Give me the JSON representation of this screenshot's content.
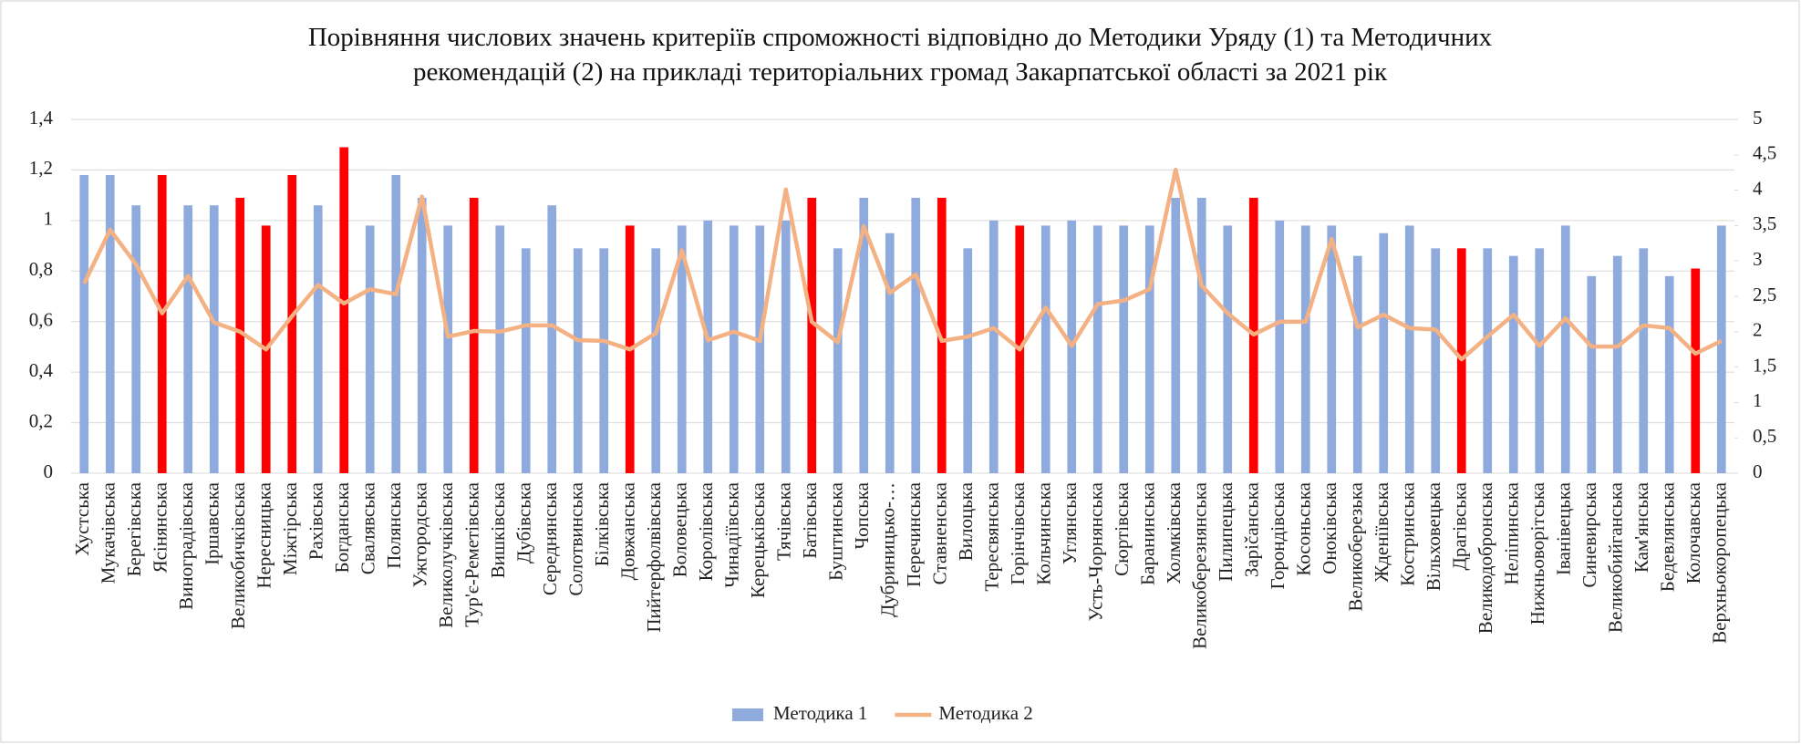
{
  "chart_data": {
    "type": "bar",
    "title": "Порівняння числових значень критеріїв спроможності відповідно до Методики Уряду (1) та Методичних рекомендацій (2) на прикладі територіальних громад Закарпатської області за 2021 рік",
    "categories": [
      "Хустська",
      "Мукачівська",
      "Берегівська",
      "Ясінянська",
      "Виноградівська",
      "Іршавська",
      "Великобичківська",
      "Нересницька",
      "Міжгірська",
      "Рахівська",
      "Богданська",
      "Свалявська",
      "Полянська",
      "Ужгородська",
      "Великолучківська",
      "Тур'є-Реметівська",
      "Вишківська",
      "Дубівська",
      "Середнянська",
      "Солотвинська",
      "Білківська",
      "Довжанська",
      "Пийтерфолвівська",
      "Воловецька",
      "Королівська",
      "Чинадіївська",
      "Керецьківська",
      "Тячівська",
      "Батівська",
      "Буштинська",
      "Чопська",
      "Дубриницько-…",
      "Перечинська",
      "Ставненська",
      "Вилоцька",
      "Тересвянська",
      "Горінчівська",
      "Кольчинська",
      "Углянська",
      "Усть-Чорнянська",
      "Сюртівська",
      "Баранинська",
      "Холмківська",
      "Великоберезнянська",
      "Пилипецька",
      "Заріčанська",
      "Горондівська",
      "Косоньська",
      "Оноківська",
      "Великоберезька",
      "Жденіївська",
      "Костринська",
      "Вільховецька",
      "Драгівська",
      "Великодобронська",
      "Неліпинська",
      "Нижньоворітська",
      "Іванівецька",
      "Синевирська",
      "Великобийганська",
      "Кам'янська",
      "Бедевлянська",
      "Колочавська",
      "Верхньокоропецька"
    ],
    "series": [
      {
        "name": "Методика 1",
        "type": "bar",
        "color": "#8faadc",
        "colors": [
          "#8faadc",
          "#8faadc",
          "#8faadc",
          "#ff0000",
          "#8faadc",
          "#8faadc",
          "#ff0000",
          "#ff0000",
          "#ff0000",
          "#8faadc",
          "#ff0000",
          "#8faadc",
          "#8faadc",
          "#8faadc",
          "#8faadc",
          "#ff0000",
          "#8faadc",
          "#8faadc",
          "#8faadc",
          "#8faadc",
          "#8faadc",
          "#ff0000",
          "#8faadc",
          "#8faadc",
          "#8faadc",
          "#8faadc",
          "#8faadc",
          "#8faadc",
          "#ff0000",
          "#8faadc",
          "#8faadc",
          "#8faadc",
          "#8faadc",
          "#ff0000",
          "#8faadc",
          "#8faadc",
          "#ff0000",
          "#8faadc",
          "#8faadc",
          "#8faadc",
          "#8faadc",
          "#8faadc",
          "#8faadc",
          "#8faadc",
          "#8faadc",
          "#ff0000",
          "#8faadc",
          "#8faadc",
          "#8faadc",
          "#8faadc",
          "#8faadc",
          "#8faadc",
          "#8faadc",
          "#ff0000",
          "#8faadc",
          "#8faadc",
          "#8faadc",
          "#8faadc",
          "#8faadc",
          "#8faadc",
          "#8faadc",
          "#8faadc",
          "#ff0000",
          "#8faadc"
        ],
        "values": [
          1.18,
          1.18,
          1.06,
          1.18,
          1.06,
          1.06,
          1.09,
          0.98,
          1.18,
          1.06,
          1.29,
          0.98,
          1.18,
          1.09,
          0.98,
          1.09,
          0.98,
          0.89,
          1.06,
          0.89,
          0.89,
          0.98,
          0.89,
          0.98,
          1.0,
          0.98,
          0.98,
          1.0,
          1.09,
          0.89,
          1.09,
          0.95,
          1.09,
          1.09,
          0.89,
          1.0,
          0.98,
          0.98,
          1.0,
          0.98,
          0.98,
          0.98,
          1.09,
          1.09,
          0.98,
          1.09,
          1.0,
          0.98,
          0.98,
          0.86,
          0.95,
          0.98,
          0.89,
          0.89,
          0.89,
          0.86,
          0.89,
          0.98,
          0.78,
          0.86,
          0.89,
          0.78,
          0.81,
          0.98
        ]
      },
      {
        "name": "Методика 2",
        "type": "line",
        "axis": "y2",
        "color": "#f4b183",
        "values": [
          2.68,
          3.44,
          2.95,
          2.26,
          2.79,
          2.13,
          2.0,
          1.75,
          2.22,
          2.66,
          2.4,
          2.6,
          2.53,
          3.91,
          1.93,
          2.01,
          2.0,
          2.09,
          2.09,
          1.88,
          1.87,
          1.75,
          1.98,
          3.15,
          1.88,
          2.0,
          1.87,
          4.01,
          2.14,
          1.85,
          3.49,
          2.55,
          2.81,
          1.87,
          1.93,
          2.05,
          1.75,
          2.34,
          1.8,
          2.39,
          2.44,
          2.6,
          4.29,
          2.65,
          2.26,
          1.96,
          2.14,
          2.14,
          3.31,
          2.06,
          2.24,
          2.05,
          2.03,
          1.61,
          1.93,
          2.24,
          1.8,
          2.19,
          1.79,
          1.79,
          2.09,
          2.05,
          1.69,
          1.87
        ]
      }
    ],
    "ylim": [
      0,
      1.4
    ],
    "yticks": [
      0,
      {
        "value": 0.2,
        "label": "0,2"
      },
      {
        "value": 0.4,
        "label": "0,4"
      },
      {
        "value": 0.6,
        "label": "0,6"
      },
      {
        "value": 0.8,
        "label": "0,8"
      },
      1,
      {
        "value": 1.2,
        "label": "1,2"
      },
      {
        "value": 1.4,
        "label": "1,4"
      }
    ],
    "y2lim": [
      0,
      5
    ],
    "y2ticks": [
      0,
      {
        "value": 0.5,
        "label": "0,5"
      },
      1,
      {
        "value": 1.5,
        "label": "1,5"
      },
      2,
      {
        "value": 2.5,
        "label": "2,5"
      },
      3,
      {
        "value": 3.5,
        "label": "3,5"
      },
      4,
      {
        "value": 4.5,
        "label": "4,5"
      },
      5
    ],
    "grid": true,
    "legend": "bottom"
  }
}
